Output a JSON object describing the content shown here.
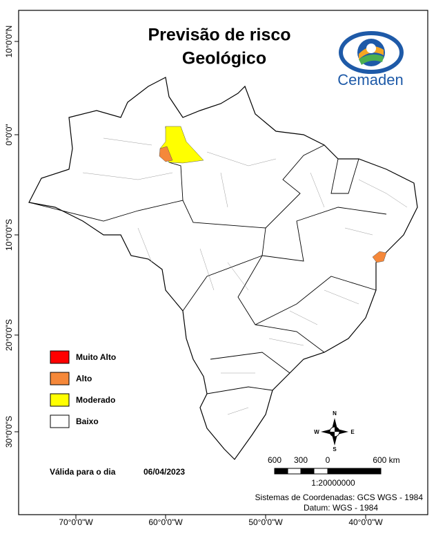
{
  "title": [
    "Previsão de risco",
    "Geológico"
  ],
  "logo": "Cemaden",
  "legend": [
    {
      "label": "Muito Alto",
      "color": "#ff0000"
    },
    {
      "label": "Alto",
      "color": "#f5883a"
    },
    {
      "label": "Moderado",
      "color": "#ffff00"
    },
    {
      "label": "Baixo",
      "color": "#ffffff"
    }
  ],
  "validity": {
    "label": "Válida para o dia",
    "date": "06/04/2023"
  },
  "scale_bar": {
    "labels": [
      "600",
      "300",
      "0",
      "600 km"
    ],
    "ratio": "1:20000000"
  },
  "compass": [
    "N",
    "S",
    "E",
    "W"
  ],
  "coordinates": [
    "Sistemas de Coordenadas: GCS WGS - 1984",
    "Datum: WGS - 1984"
  ],
  "longitude_labels": [
    "70°0'0\"W",
    "60°0'0\"W",
    "50°0'0\"W",
    "40°0'0\"W"
  ],
  "latitude_labels": [
    "10°0'0\"N",
    "0°0'0\"",
    "10°0'0\"S",
    "20°0'0\"S",
    "30°0'0\"S"
  ]
}
